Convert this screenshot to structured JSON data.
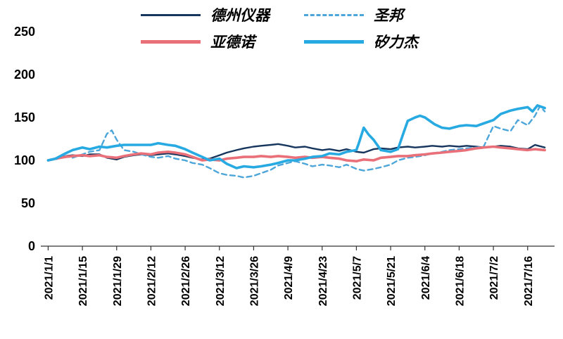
{
  "legend": {
    "items": [
      {
        "label": "德州仪器",
        "color": "#17365d",
        "style": "solid",
        "weight": 3
      },
      {
        "label": "圣邦",
        "color": "#4da6d9",
        "style": "dashed",
        "weight": 3
      },
      {
        "label": "亚德诺",
        "color": "#e97079",
        "style": "solid",
        "weight": 5
      },
      {
        "label": "矽力杰",
        "color": "#27a9e1",
        "style": "solid",
        "weight": 5
      }
    ]
  },
  "chart_data": {
    "type": "line",
    "title": "",
    "xlabel": "",
    "ylabel": "",
    "grid": false,
    "legend_position": "top",
    "ylim": [
      0,
      250
    ],
    "y_ticks": [
      0,
      50,
      100,
      150,
      200,
      250
    ],
    "x_unit": "days since 2021/1/1",
    "x_ticks": [
      {
        "day": 0,
        "label": "2021/1/1"
      },
      {
        "day": 14,
        "label": "2021/1/15"
      },
      {
        "day": 28,
        "label": "2021/1/29"
      },
      {
        "day": 42,
        "label": "2021/2/12"
      },
      {
        "day": 56,
        "label": "2021/2/26"
      },
      {
        "day": 70,
        "label": "2021/3/12"
      },
      {
        "day": 84,
        "label": "2021/3/26"
      },
      {
        "day": 98,
        "label": "2021/4/9"
      },
      {
        "day": 112,
        "label": "2021/4/23"
      },
      {
        "day": 126,
        "label": "2021/5/7"
      },
      {
        "day": 140,
        "label": "2021/5/21"
      },
      {
        "day": 154,
        "label": "2021/6/4"
      },
      {
        "day": 168,
        "label": "2021/6/18"
      },
      {
        "day": 182,
        "label": "2021/7/2"
      },
      {
        "day": 196,
        "label": "2021/7/16"
      }
    ],
    "series": [
      {
        "name": "德州仪器",
        "color": "#17365d",
        "dash": null,
        "width": 2.4,
        "points": [
          [
            0,
            100
          ],
          [
            3,
            102
          ],
          [
            7,
            105
          ],
          [
            10,
            106
          ],
          [
            14,
            105
          ],
          [
            17,
            107
          ],
          [
            21,
            107
          ],
          [
            24,
            103
          ],
          [
            28,
            101
          ],
          [
            31,
            104
          ],
          [
            35,
            106
          ],
          [
            38,
            107
          ],
          [
            42,
            106
          ],
          [
            45,
            107
          ],
          [
            49,
            108
          ],
          [
            52,
            107
          ],
          [
            56,
            105
          ],
          [
            59,
            103
          ],
          [
            63,
            101
          ],
          [
            66,
            102
          ],
          [
            70,
            106
          ],
          [
            73,
            109
          ],
          [
            77,
            112
          ],
          [
            80,
            114
          ],
          [
            84,
            116
          ],
          [
            87,
            117
          ],
          [
            91,
            118
          ],
          [
            94,
            119
          ],
          [
            98,
            117
          ],
          [
            101,
            115
          ],
          [
            105,
            116
          ],
          [
            108,
            114
          ],
          [
            112,
            112
          ],
          [
            115,
            113
          ],
          [
            119,
            111
          ],
          [
            122,
            113
          ],
          [
            126,
            110
          ],
          [
            129,
            109
          ],
          [
            133,
            113
          ],
          [
            136,
            114
          ],
          [
            140,
            113
          ],
          [
            143,
            115
          ],
          [
            147,
            116
          ],
          [
            150,
            115
          ],
          [
            154,
            116
          ],
          [
            157,
            117
          ],
          [
            161,
            116
          ],
          [
            164,
            117
          ],
          [
            168,
            116
          ],
          [
            171,
            117
          ],
          [
            175,
            116
          ],
          [
            178,
            115
          ],
          [
            182,
            116
          ],
          [
            185,
            117
          ],
          [
            189,
            116
          ],
          [
            192,
            114
          ],
          [
            196,
            113
          ],
          [
            199,
            118
          ],
          [
            203,
            115
          ]
        ]
      },
      {
        "name": "圣邦",
        "color": "#4da6d9",
        "dash": "7 5",
        "width": 2.4,
        "points": [
          [
            0,
            100
          ],
          [
            3,
            101
          ],
          [
            7,
            105
          ],
          [
            10,
            103
          ],
          [
            14,
            107
          ],
          [
            17,
            110
          ],
          [
            21,
            112
          ],
          [
            24,
            131
          ],
          [
            26,
            135
          ],
          [
            28,
            124
          ],
          [
            31,
            112
          ],
          [
            35,
            110
          ],
          [
            38,
            107
          ],
          [
            42,
            104
          ],
          [
            45,
            103
          ],
          [
            49,
            105
          ],
          [
            52,
            102
          ],
          [
            56,
            100
          ],
          [
            59,
            97
          ],
          [
            63,
            95
          ],
          [
            66,
            91
          ],
          [
            70,
            85
          ],
          [
            73,
            83
          ],
          [
            77,
            82
          ],
          [
            80,
            80
          ],
          [
            84,
            82
          ],
          [
            87,
            85
          ],
          [
            91,
            89
          ],
          [
            94,
            94
          ],
          [
            98,
            97
          ],
          [
            101,
            99
          ],
          [
            105,
            96
          ],
          [
            108,
            93
          ],
          [
            112,
            95
          ],
          [
            115,
            94
          ],
          [
            119,
            92
          ],
          [
            122,
            95
          ],
          [
            126,
            90
          ],
          [
            129,
            88
          ],
          [
            133,
            90
          ],
          [
            136,
            92
          ],
          [
            140,
            95
          ],
          [
            143,
            100
          ],
          [
            147,
            103
          ],
          [
            150,
            104
          ],
          [
            154,
            106
          ],
          [
            157,
            108
          ],
          [
            161,
            110
          ],
          [
            164,
            112
          ],
          [
            168,
            113
          ],
          [
            171,
            114
          ],
          [
            175,
            115
          ],
          [
            178,
            116
          ],
          [
            182,
            140
          ],
          [
            185,
            137
          ],
          [
            189,
            134
          ],
          [
            192,
            147
          ],
          [
            196,
            141
          ],
          [
            199,
            152
          ],
          [
            201,
            163
          ],
          [
            203,
            157
          ]
        ]
      },
      {
        "name": "亚德诺",
        "color": "#e97079",
        "dash": null,
        "width": 3.6,
        "points": [
          [
            0,
            100
          ],
          [
            3,
            102
          ],
          [
            7,
            104
          ],
          [
            10,
            105
          ],
          [
            14,
            106
          ],
          [
            17,
            105
          ],
          [
            21,
            106
          ],
          [
            24,
            104
          ],
          [
            28,
            103
          ],
          [
            31,
            105
          ],
          [
            35,
            107
          ],
          [
            38,
            108
          ],
          [
            42,
            107
          ],
          [
            45,
            109
          ],
          [
            49,
            110
          ],
          [
            52,
            109
          ],
          [
            56,
            107
          ],
          [
            59,
            104
          ],
          [
            63,
            100
          ],
          [
            66,
            101
          ],
          [
            70,
            100
          ],
          [
            73,
            102
          ],
          [
            77,
            103
          ],
          [
            80,
            104
          ],
          [
            84,
            104
          ],
          [
            87,
            105
          ],
          [
            91,
            104
          ],
          [
            94,
            105
          ],
          [
            98,
            104
          ],
          [
            101,
            103
          ],
          [
            105,
            104
          ],
          [
            108,
            103
          ],
          [
            112,
            104
          ],
          [
            115,
            103
          ],
          [
            119,
            102
          ],
          [
            122,
            100
          ],
          [
            126,
            99
          ],
          [
            129,
            101
          ],
          [
            133,
            100
          ],
          [
            136,
            103
          ],
          [
            140,
            104
          ],
          [
            143,
            105
          ],
          [
            147,
            105
          ],
          [
            150,
            106
          ],
          [
            154,
            107
          ],
          [
            157,
            108
          ],
          [
            161,
            109
          ],
          [
            164,
            110
          ],
          [
            168,
            111
          ],
          [
            171,
            112
          ],
          [
            175,
            114
          ],
          [
            178,
            115
          ],
          [
            182,
            116
          ],
          [
            185,
            115
          ],
          [
            189,
            114
          ],
          [
            192,
            113
          ],
          [
            196,
            112
          ],
          [
            199,
            113
          ],
          [
            203,
            112
          ]
        ]
      },
      {
        "name": "矽力杰",
        "color": "#27a9e1",
        "dash": null,
        "width": 3.6,
        "points": [
          [
            0,
            100
          ],
          [
            3,
            102
          ],
          [
            7,
            108
          ],
          [
            10,
            112
          ],
          [
            14,
            115
          ],
          [
            17,
            113
          ],
          [
            21,
            116
          ],
          [
            24,
            115
          ],
          [
            28,
            117
          ],
          [
            31,
            118
          ],
          [
            35,
            118
          ],
          [
            38,
            118
          ],
          [
            42,
            118
          ],
          [
            45,
            120
          ],
          [
            49,
            118
          ],
          [
            52,
            117
          ],
          [
            56,
            113
          ],
          [
            59,
            109
          ],
          [
            63,
            104
          ],
          [
            66,
            100
          ],
          [
            70,
            102
          ],
          [
            73,
            96
          ],
          [
            77,
            91
          ],
          [
            80,
            93
          ],
          [
            84,
            92
          ],
          [
            87,
            93
          ],
          [
            91,
            95
          ],
          [
            94,
            97
          ],
          [
            98,
            100
          ],
          [
            101,
            100
          ],
          [
            105,
            102
          ],
          [
            108,
            104
          ],
          [
            112,
            105
          ],
          [
            115,
            108
          ],
          [
            119,
            107
          ],
          [
            122,
            110
          ],
          [
            126,
            112
          ],
          [
            127,
            120
          ],
          [
            129,
            138
          ],
          [
            131,
            130
          ],
          [
            133,
            124
          ],
          [
            136,
            112
          ],
          [
            140,
            110
          ],
          [
            143,
            113
          ],
          [
            145,
            130
          ],
          [
            147,
            146
          ],
          [
            150,
            150
          ],
          [
            152,
            152
          ],
          [
            154,
            150
          ],
          [
            156,
            146
          ],
          [
            158,
            142
          ],
          [
            161,
            138
          ],
          [
            164,
            137
          ],
          [
            168,
            140
          ],
          [
            171,
            141
          ],
          [
            175,
            140
          ],
          [
            178,
            143
          ],
          [
            182,
            147
          ],
          [
            185,
            154
          ],
          [
            189,
            158
          ],
          [
            192,
            160
          ],
          [
            196,
            162
          ],
          [
            198,
            157
          ],
          [
            200,
            164
          ],
          [
            203,
            161
          ]
        ]
      }
    ]
  }
}
